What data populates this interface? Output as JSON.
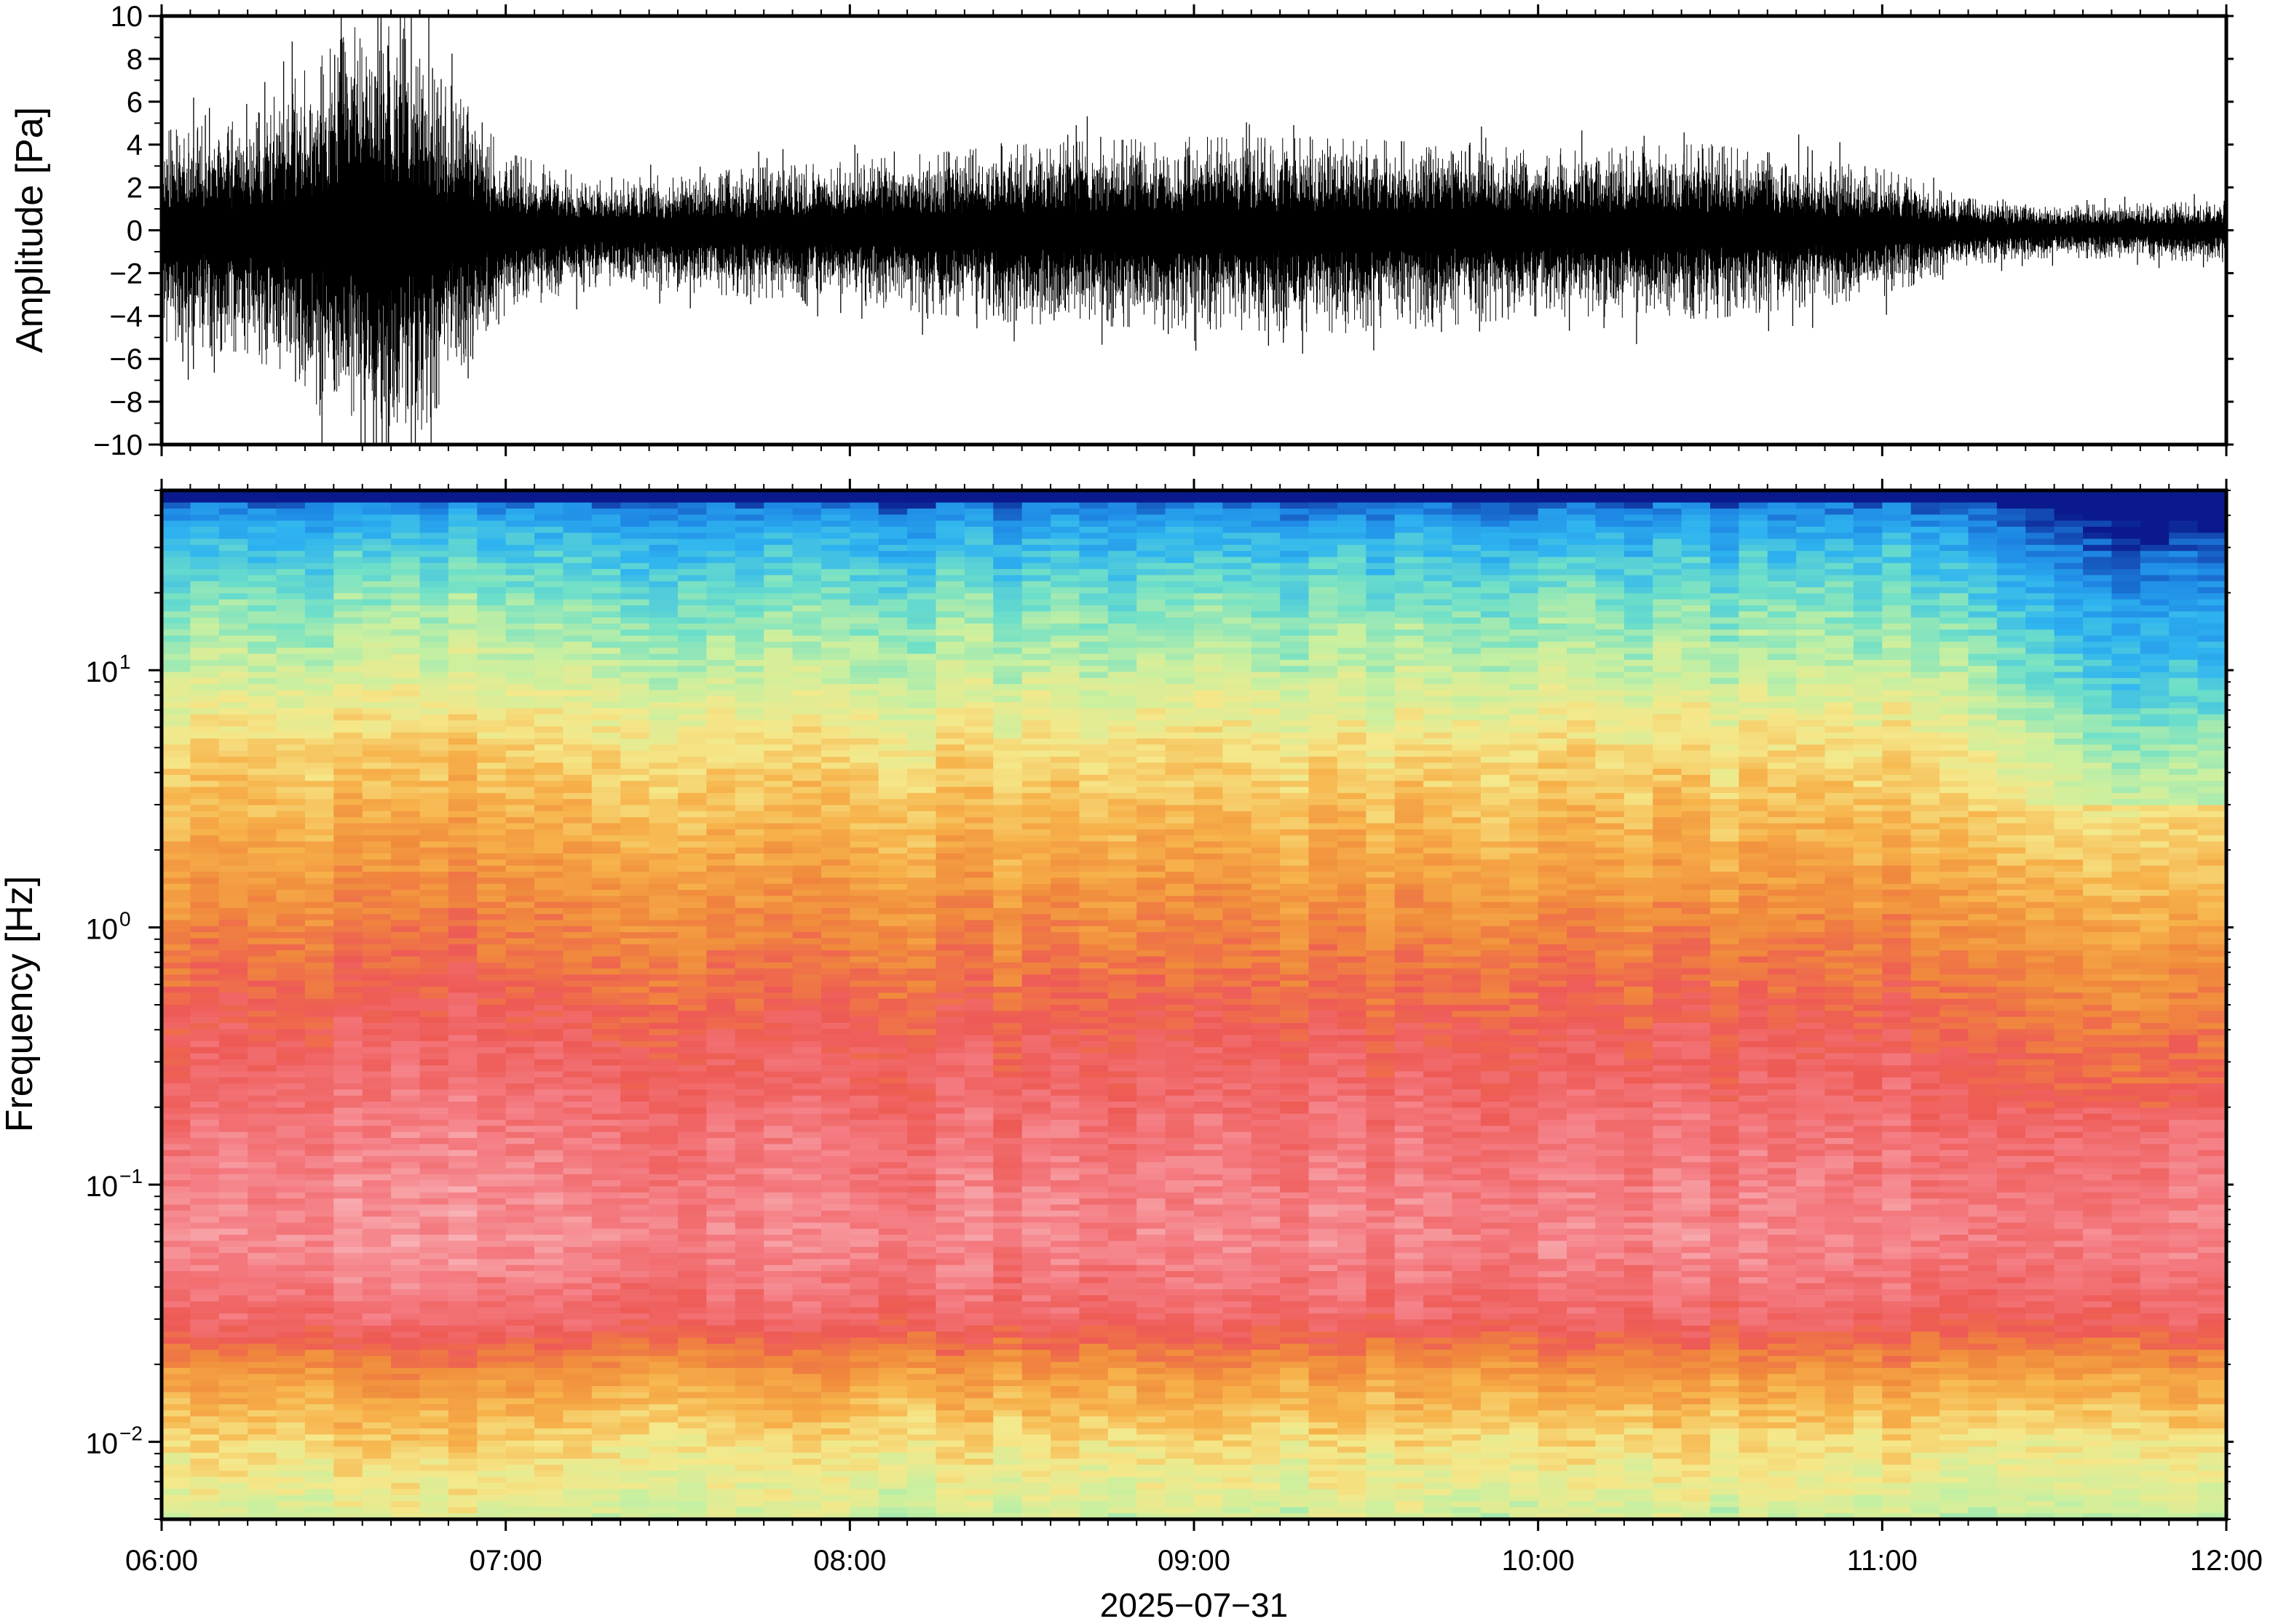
{
  "chart_data": [
    {
      "type": "line",
      "panel": "waveform",
      "ylabel": "Amplitude [Pa]",
      "ylim": [
        -10,
        10
      ],
      "yticks": [
        10,
        8,
        6,
        4,
        2,
        0,
        -2,
        -4,
        -6,
        -8,
        -10
      ],
      "ytick_labels": [
        "10",
        "8",
        "6",
        "4",
        "2",
        "0",
        "−2",
        "−4",
        "−6",
        "−8",
        "−10"
      ],
      "xlim": [
        "06:00",
        "12:00"
      ],
      "series": [
        {
          "color": "#000000",
          "x": [
            "06:00",
            "06:15",
            "06:30",
            "06:40",
            "06:50",
            "07:00",
            "07:15",
            "07:30",
            "08:00",
            "08:30",
            "09:00",
            "09:30",
            "10:00",
            "10:30",
            "11:00",
            "11:15",
            "11:30",
            "12:00"
          ],
          "envelope_max": [
            4.0,
            4.5,
            7.5,
            9.5,
            6.0,
            3.2,
            2.0,
            2.3,
            2.8,
            3.5,
            3.8,
            3.7,
            3.3,
            3.5,
            2.5,
            1.3,
            1.0,
            1.2
          ],
          "envelope_min": [
            -4.5,
            -5.0,
            -8.0,
            -10.0,
            -6.5,
            -3.4,
            -2.3,
            -2.5,
            -3.0,
            -3.8,
            -4.0,
            -4.2,
            -3.5,
            -3.6,
            -2.7,
            -1.4,
            -1.1,
            -1.3
          ]
        }
      ]
    },
    {
      "type": "heatmap",
      "panel": "spectrogram",
      "ylabel": "Frequency [Hz]",
      "xlabel": "2025−07−31",
      "yscale": "log",
      "ylim": [
        0.005,
        50
      ],
      "yticks": [
        0.01,
        0.1,
        1,
        10
      ],
      "ytick_labels": [
        {
          "base": "10",
          "exp": "−2"
        },
        {
          "base": "10",
          "exp": "−1"
        },
        {
          "base": "10",
          "exp": "0"
        },
        {
          "base": "10",
          "exp": "1"
        }
      ],
      "xticks": [
        "06:00",
        "07:00",
        "08:00",
        "09:00",
        "10:00",
        "11:00",
        "12:00"
      ],
      "colormap": "rainbow (blue low → pink high)",
      "colormap_stops": [
        "#0a1a8c",
        "#1e88e5",
        "#2fb4f0",
        "#6fe0c8",
        "#c8f0a0",
        "#f5e88a",
        "#f7b24a",
        "#f08a3c",
        "#ee5a55",
        "#f47a80",
        "#f8b0b4"
      ],
      "frequency_profile": [
        {
          "hz": 50,
          "level": 0.02
        },
        {
          "hz": 35,
          "level": 0.18
        },
        {
          "hz": 20,
          "level": 0.3
        },
        {
          "hz": 10,
          "level": 0.4
        },
        {
          "hz": 5,
          "level": 0.52
        },
        {
          "hz": 2,
          "level": 0.62
        },
        {
          "hz": 1,
          "level": 0.7
        },
        {
          "hz": 0.4,
          "level": 0.8
        },
        {
          "hz": 0.15,
          "level": 0.88
        },
        {
          "hz": 0.06,
          "level": 0.92
        },
        {
          "hz": 0.03,
          "level": 0.84
        },
        {
          "hz": 0.018,
          "level": 0.65
        },
        {
          "hz": 0.01,
          "level": 0.52
        },
        {
          "hz": 0.005,
          "level": 0.42
        }
      ]
    }
  ]
}
